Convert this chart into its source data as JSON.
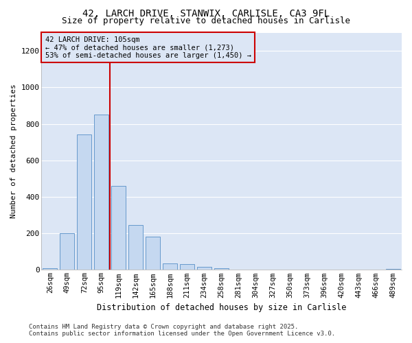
{
  "title_line1": "42, LARCH DRIVE, STANWIX, CARLISLE, CA3 9FL",
  "title_line2": "Size of property relative to detached houses in Carlisle",
  "xlabel": "Distribution of detached houses by size in Carlisle",
  "ylabel": "Number of detached properties",
  "categories": [
    "26sqm",
    "49sqm",
    "72sqm",
    "95sqm",
    "119sqm",
    "142sqm",
    "165sqm",
    "188sqm",
    "211sqm",
    "234sqm",
    "258sqm",
    "281sqm",
    "304sqm",
    "327sqm",
    "350sqm",
    "373sqm",
    "396sqm",
    "420sqm",
    "443sqm",
    "466sqm",
    "489sqm"
  ],
  "values": [
    10,
    200,
    740,
    850,
    460,
    245,
    180,
    35,
    30,
    15,
    10,
    0,
    2,
    0,
    0,
    0,
    0,
    0,
    0,
    0,
    5
  ],
  "bar_color": "#c5d8f0",
  "bar_edgecolor": "#6699cc",
  "vline_x": 3.5,
  "vline_color": "#cc0000",
  "annotation_title": "42 LARCH DRIVE: 105sqm",
  "annotation_line2": "← 47% of detached houses are smaller (1,273)",
  "annotation_line3": "53% of semi-detached houses are larger (1,450) →",
  "annotation_box_color": "#cc0000",
  "ylim": [
    0,
    1300
  ],
  "yticks": [
    0,
    200,
    400,
    600,
    800,
    1000,
    1200
  ],
  "plot_bg_color": "#dce6f5",
  "fig_bg_color": "#ffffff",
  "grid_color": "#ffffff",
  "footer_line1": "Contains HM Land Registry data © Crown copyright and database right 2025.",
  "footer_line2": "Contains public sector information licensed under the Open Government Licence v3.0."
}
